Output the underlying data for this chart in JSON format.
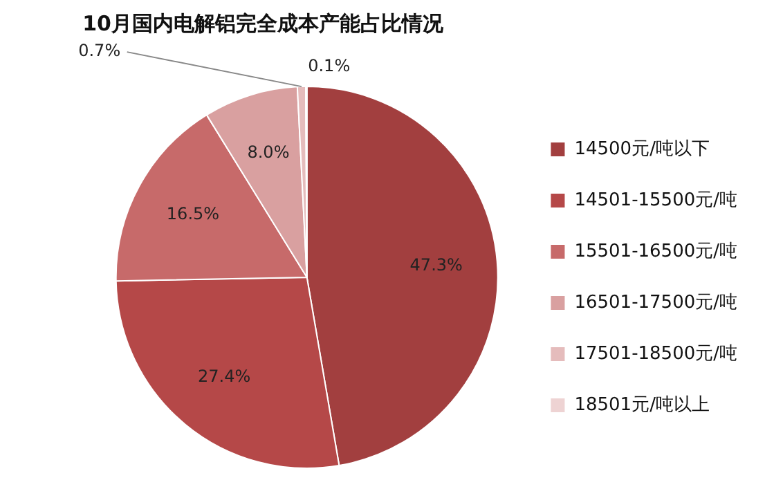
{
  "chart_data": {
    "type": "pie",
    "title": "10月国内电解铝完全成本产能占比情况",
    "categories": [
      "14500元/吨以下",
      "14501-15500元/吨",
      "15501-16500元/吨",
      "16501-17500元/吨",
      "17501-18500元/吨",
      "18501元/吨以上"
    ],
    "values": [
      47.3,
      27.4,
      16.5,
      8.0,
      0.7,
      0.1
    ],
    "colors": [
      "#a23f3f",
      "#b54848",
      "#c76a6a",
      "#d9a0a0",
      "#e5bcbc",
      "#eed3d3"
    ],
    "value_labels": [
      "47.3%",
      "27.4%",
      "16.5%",
      "8.0%",
      "0.7%",
      "0.1%"
    ],
    "legend": "right"
  }
}
